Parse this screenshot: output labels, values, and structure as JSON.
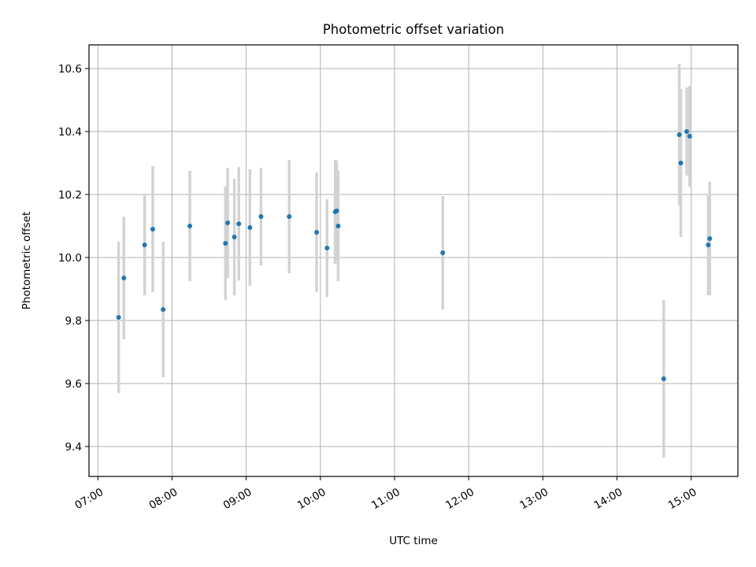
{
  "chart_data": {
    "type": "scatter",
    "title": "Photometric offset variation",
    "xlabel": "UTC time",
    "ylabel": "Photometric offset",
    "x_unit": "hours UTC (decimal)",
    "xlim": [
      6.88,
      15.63
    ],
    "ylim": [
      9.305,
      10.675
    ],
    "grid": true,
    "legend": "none",
    "x_ticks": [
      {
        "value": 7,
        "label": "07:00"
      },
      {
        "value": 8,
        "label": "08:00"
      },
      {
        "value": 9,
        "label": "09:00"
      },
      {
        "value": 10,
        "label": "10:00"
      },
      {
        "value": 11,
        "label": "11:00"
      },
      {
        "value": 12,
        "label": "12:00"
      },
      {
        "value": 13,
        "label": "13:00"
      },
      {
        "value": 14,
        "label": "14:00"
      },
      {
        "value": 15,
        "label": "15:00"
      }
    ],
    "y_ticks": [
      {
        "value": 9.4,
        "label": "9.4"
      },
      {
        "value": 9.6,
        "label": "9.6"
      },
      {
        "value": 9.8,
        "label": "9.8"
      },
      {
        "value": 10.0,
        "label": "10.0"
      },
      {
        "value": 10.2,
        "label": "10.2"
      },
      {
        "value": 10.4,
        "label": "10.4"
      },
      {
        "value": 10.6,
        "label": "10.6"
      }
    ],
    "series": [
      {
        "marker_color": "#1f77b4",
        "errorbar_color": "#d3d3d3",
        "points": [
          {
            "x": 7.28,
            "y": 9.81,
            "err": 0.24
          },
          {
            "x": 7.35,
            "y": 9.935,
            "err": 0.195
          },
          {
            "x": 7.63,
            "y": 10.04,
            "err": 0.16
          },
          {
            "x": 7.74,
            "y": 10.09,
            "err": 0.2
          },
          {
            "x": 7.88,
            "y": 9.835,
            "err": 0.215
          },
          {
            "x": 8.24,
            "y": 10.1,
            "err": 0.175
          },
          {
            "x": 8.72,
            "y": 10.045,
            "err": 0.18
          },
          {
            "x": 8.75,
            "y": 10.11,
            "err": 0.175
          },
          {
            "x": 8.84,
            "y": 10.065,
            "err": 0.185
          },
          {
            "x": 8.9,
            "y": 10.107,
            "err": 0.18
          },
          {
            "x": 9.05,
            "y": 10.095,
            "err": 0.185
          },
          {
            "x": 9.2,
            "y": 10.13,
            "err": 0.155
          },
          {
            "x": 9.58,
            "y": 10.13,
            "err": 0.18
          },
          {
            "x": 9.95,
            "y": 10.08,
            "err": 0.19
          },
          {
            "x": 10.09,
            "y": 10.03,
            "err": 0.155
          },
          {
            "x": 10.2,
            "y": 10.145,
            "err": 0.165
          },
          {
            "x": 10.22,
            "y": 10.148,
            "err": 0.16
          },
          {
            "x": 10.24,
            "y": 10.1,
            "err": 0.175
          },
          {
            "x": 11.65,
            "y": 10.015,
            "err": 0.18
          },
          {
            "x": 14.63,
            "y": 9.615,
            "err": 0.25
          },
          {
            "x": 14.84,
            "y": 10.39,
            "err": 0.225
          },
          {
            "x": 14.86,
            "y": 10.3,
            "err": 0.235
          },
          {
            "x": 14.94,
            "y": 10.4,
            "err": 0.14
          },
          {
            "x": 14.98,
            "y": 10.385,
            "err": 0.16
          },
          {
            "x": 15.23,
            "y": 10.04,
            "err": 0.16
          },
          {
            "x": 15.25,
            "y": 10.06,
            "err": 0.18
          }
        ]
      }
    ]
  }
}
